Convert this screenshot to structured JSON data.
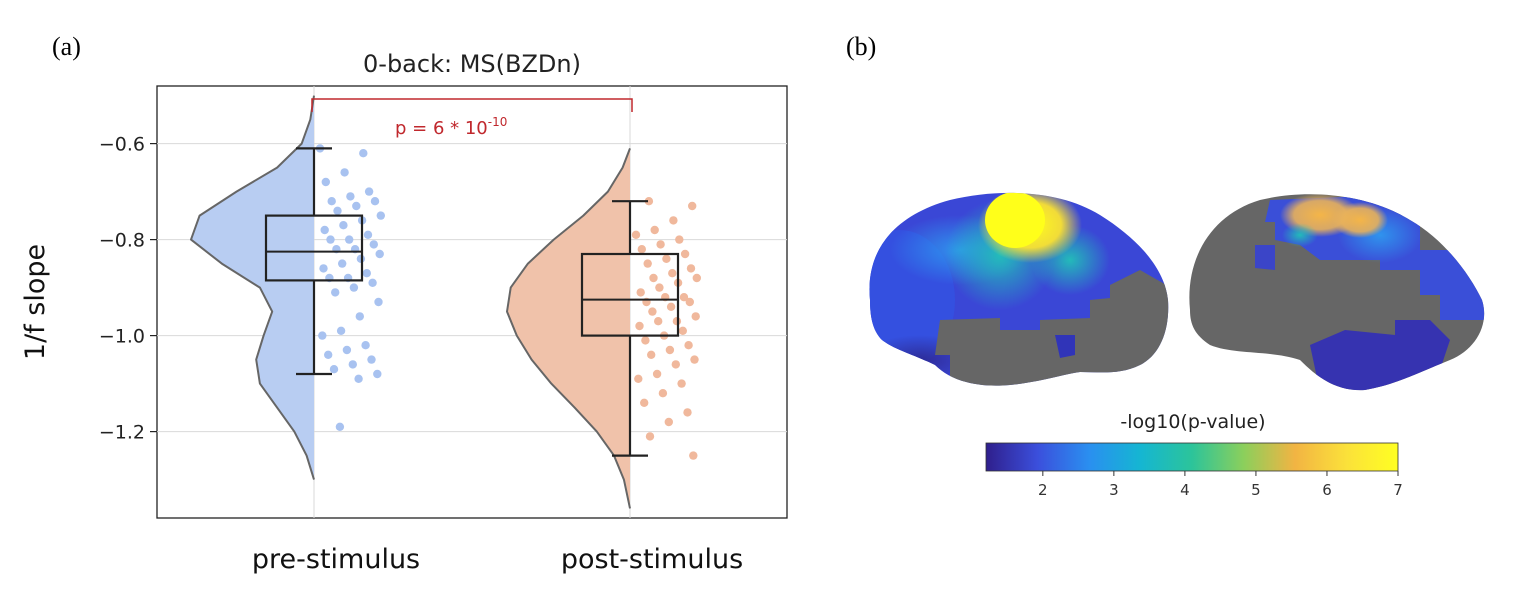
{
  "panel_labels": {
    "a": "(a)",
    "b": "(b)"
  },
  "chart_data": [
    {
      "type": "violin_box_strip",
      "title": "0-back: MS(BZDn)",
      "xlabel": "",
      "ylabel": "1/f slope",
      "ylim": [
        -1.38,
        -0.48
      ],
      "yticks": [
        -0.6,
        -0.8,
        -1.0,
        -1.2
      ],
      "ytick_labels": [
        "−0.6",
        "−0.8",
        "−1.0",
        "−1.2"
      ],
      "grid": true,
      "categories": [
        "pre-stimulus",
        "post-stimulus"
      ],
      "series": [
        {
          "color": "#b8cdf2",
          "point_color": "#a8c2f0",
          "box": {
            "whisker_low": -1.08,
            "q1": -0.885,
            "median": -0.825,
            "q3": -0.75,
            "whisker_high": -0.61
          },
          "violin_range": [
            -1.3,
            -0.5
          ],
          "violin_density": [
            [
              -1.3,
              0.0
            ],
            [
              -1.25,
              0.06
            ],
            [
              -1.2,
              0.16
            ],
            [
              -1.15,
              0.3
            ],
            [
              -1.1,
              0.44
            ],
            [
              -1.05,
              0.47
            ],
            [
              -1.0,
              0.41
            ],
            [
              -0.95,
              0.34
            ],
            [
              -0.9,
              0.44
            ],
            [
              -0.85,
              0.75
            ],
            [
              -0.8,
              1.0
            ],
            [
              -0.75,
              0.93
            ],
            [
              -0.7,
              0.63
            ],
            [
              -0.65,
              0.3
            ],
            [
              -0.6,
              0.1
            ],
            [
              -0.55,
              0.03
            ],
            [
              -0.5,
              0.0
            ]
          ],
          "points": [
            -0.61,
            -0.62,
            -0.66,
            -0.68,
            -0.7,
            -0.71,
            -0.72,
            -0.72,
            -0.73,
            -0.74,
            -0.75,
            -0.76,
            -0.77,
            -0.78,
            -0.79,
            -0.8,
            -0.8,
            -0.81,
            -0.82,
            -0.82,
            -0.83,
            -0.84,
            -0.85,
            -0.86,
            -0.87,
            -0.88,
            -0.88,
            -0.89,
            -0.9,
            -0.91,
            -0.93,
            -0.96,
            -0.99,
            -1.0,
            -1.02,
            -1.03,
            -1.04,
            -1.05,
            -1.06,
            -1.07,
            -1.08,
            -1.09,
            -1.19
          ]
        },
        {
          "color": "#f0c2aa",
          "point_color": "#f0b89c",
          "box": {
            "whisker_low": -1.25,
            "q1": -1.0,
            "median": -0.925,
            "q3": -0.83,
            "whisker_high": -0.72
          },
          "violin_range": [
            -1.36,
            -0.61
          ],
          "violin_density": [
            [
              -1.36,
              0.0
            ],
            [
              -1.3,
              0.05
            ],
            [
              -1.25,
              0.13
            ],
            [
              -1.2,
              0.27
            ],
            [
              -1.15,
              0.45
            ],
            [
              -1.1,
              0.64
            ],
            [
              -1.05,
              0.8
            ],
            [
              -1.0,
              0.92
            ],
            [
              -0.95,
              1.0
            ],
            [
              -0.9,
              0.97
            ],
            [
              -0.85,
              0.83
            ],
            [
              -0.8,
              0.62
            ],
            [
              -0.75,
              0.38
            ],
            [
              -0.7,
              0.18
            ],
            [
              -0.65,
              0.06
            ],
            [
              -0.61,
              0.0
            ]
          ],
          "points": [
            -0.72,
            -0.73,
            -0.76,
            -0.78,
            -0.79,
            -0.8,
            -0.81,
            -0.82,
            -0.83,
            -0.84,
            -0.85,
            -0.86,
            -0.87,
            -0.88,
            -0.88,
            -0.89,
            -0.9,
            -0.91,
            -0.92,
            -0.92,
            -0.93,
            -0.93,
            -0.94,
            -0.95,
            -0.96,
            -0.97,
            -0.97,
            -0.98,
            -0.99,
            -1.0,
            -1.01,
            -1.02,
            -1.03,
            -1.04,
            -1.05,
            -1.06,
            -1.08,
            -1.09,
            -1.1,
            -1.12,
            -1.14,
            -1.16,
            -1.18,
            -1.21,
            -1.25
          ]
        }
      ],
      "annotation": {
        "text": "p = 6 * 10",
        "superscript": "-10",
        "color": "#c0282d"
      }
    },
    {
      "type": "heatmap",
      "description_free": true,
      "colorbar": {
        "title": "-log10(p-value)",
        "range": [
          1.2,
          7
        ],
        "ticks": [
          2,
          3,
          4,
          5,
          6,
          7
        ],
        "colormap": [
          "#2f1f8c",
          "#3b4fdc",
          "#2a8ff0",
          "#15b6d2",
          "#2cc49a",
          "#8bcf5c",
          "#f2b443",
          "#fbe13a",
          "#ffff22"
        ]
      },
      "colors": {
        "nonsignificant": "#6a6a6a"
      }
    }
  ]
}
